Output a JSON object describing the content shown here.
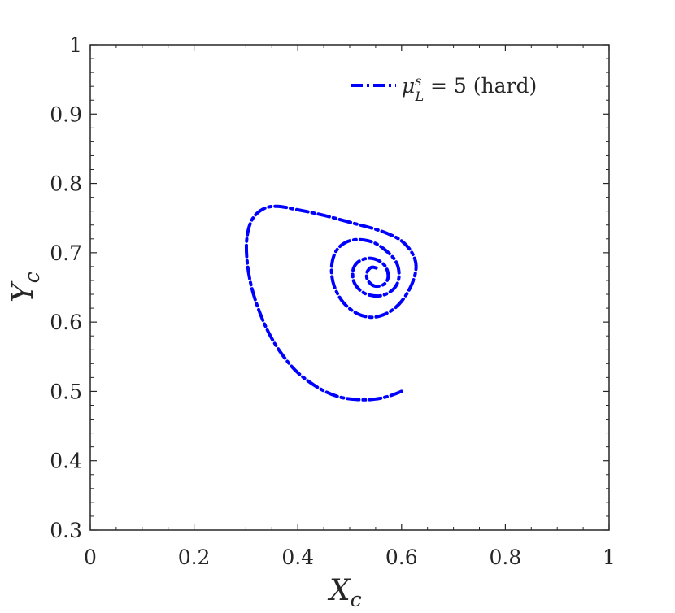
{
  "chart_data": {
    "type": "line",
    "xlabel": "X",
    "xlabel_subscript": "c",
    "ylabel": "Y",
    "ylabel_subscript": "c",
    "xlim": [
      0,
      1
    ],
    "ylim": [
      0.3,
      1
    ],
    "xticks": [
      0,
      0.2,
      0.4,
      0.6,
      0.8,
      1
    ],
    "xtick_labels": [
      "0",
      "0.2",
      "0.4",
      "0.6",
      "0.8",
      "1"
    ],
    "yticks": [
      0.3,
      0.4,
      0.5,
      0.6,
      0.7,
      0.8,
      0.9,
      1
    ],
    "ytick_labels": [
      "0.3",
      "0.4",
      "0.5",
      "0.6",
      "0.7",
      "0.8",
      "0.9",
      "1"
    ],
    "grid": false,
    "legend_position": "top-right",
    "series": [
      {
        "legend": {
          "mu": "μ",
          "sup": "s",
          "sub": "L",
          "rest": " = 5 (hard)"
        },
        "color": "#0000FF",
        "line_style": "dash-dot",
        "points": [
          [
            0.6,
            0.5
          ],
          [
            0.575,
            0.493
          ],
          [
            0.55,
            0.489
          ],
          [
            0.52,
            0.488
          ],
          [
            0.48,
            0.492
          ],
          [
            0.44,
            0.505
          ],
          [
            0.4,
            0.527
          ],
          [
            0.37,
            0.553
          ],
          [
            0.345,
            0.583
          ],
          [
            0.325,
            0.617
          ],
          [
            0.31,
            0.653
          ],
          [
            0.302,
            0.69
          ],
          [
            0.302,
            0.722
          ],
          [
            0.312,
            0.748
          ],
          [
            0.333,
            0.763
          ],
          [
            0.36,
            0.767
          ],
          [
            0.4,
            0.762
          ],
          [
            0.45,
            0.754
          ],
          [
            0.5,
            0.744
          ],
          [
            0.545,
            0.735
          ],
          [
            0.575,
            0.727
          ],
          [
            0.6,
            0.717
          ],
          [
            0.62,
            0.7
          ],
          [
            0.628,
            0.68
          ],
          [
            0.62,
            0.655
          ],
          [
            0.6,
            0.63
          ],
          [
            0.575,
            0.614
          ],
          [
            0.545,
            0.607
          ],
          [
            0.515,
            0.612
          ],
          [
            0.488,
            0.628
          ],
          [
            0.47,
            0.652
          ],
          [
            0.465,
            0.677
          ],
          [
            0.472,
            0.7
          ],
          [
            0.49,
            0.714
          ],
          [
            0.515,
            0.719
          ],
          [
            0.545,
            0.715
          ],
          [
            0.57,
            0.703
          ],
          [
            0.59,
            0.686
          ],
          [
            0.595,
            0.665
          ],
          [
            0.585,
            0.648
          ],
          [
            0.56,
            0.638
          ],
          [
            0.53,
            0.641
          ],
          [
            0.51,
            0.655
          ],
          [
            0.506,
            0.673
          ],
          [
            0.515,
            0.686
          ],
          [
            0.535,
            0.692
          ],
          [
            0.555,
            0.689
          ],
          [
            0.57,
            0.679
          ],
          [
            0.574,
            0.664
          ],
          [
            0.565,
            0.654
          ],
          [
            0.548,
            0.652
          ],
          [
            0.535,
            0.66
          ],
          [
            0.533,
            0.671
          ],
          [
            0.542,
            0.679
          ],
          [
            0.555,
            0.677
          ]
        ]
      }
    ]
  }
}
